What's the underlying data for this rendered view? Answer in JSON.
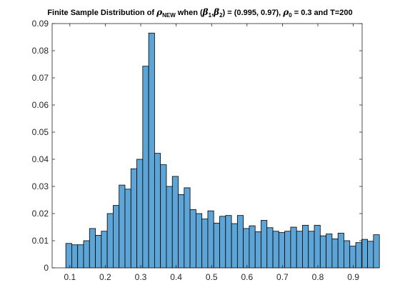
{
  "chart_data": {
    "type": "bar",
    "title_segments": [
      {
        "text": "Finite Sample Distribution of "
      },
      {
        "text": "ρ",
        "italic": true
      },
      {
        "text": "NEW",
        "sub": true
      },
      {
        "text": " when ("
      },
      {
        "text": "β",
        "italic": true
      },
      {
        "text": "1",
        "sub": true
      },
      {
        "text": ","
      },
      {
        "text": "β",
        "italic": true
      },
      {
        "text": "2",
        "sub": true
      },
      {
        "text": ") = (0.995, 0.97), "
      },
      {
        "text": "ρ",
        "italic": true
      },
      {
        "text": "0",
        "sub": true
      },
      {
        "text": " = 0.3 and T=200"
      }
    ],
    "xlabel": "",
    "ylabel": "",
    "xlim": [
      0.05,
      0.925
    ],
    "ylim": [
      0,
      0.09
    ],
    "xticks": [
      "0.1",
      "0.2",
      "0.3",
      "0.4",
      "0.5",
      "0.6",
      "0.7",
      "0.8",
      "0.9"
    ],
    "xtick_values": [
      0.1,
      0.2,
      0.3,
      0.4,
      0.5,
      0.6,
      0.7,
      0.8,
      0.9
    ],
    "yticks": [
      "0",
      "0.01",
      "0.02",
      "0.03",
      "0.04",
      "0.05",
      "0.06",
      "0.07",
      "0.08",
      "0.09"
    ],
    "ytick_values": [
      0,
      0.01,
      0.02,
      0.03,
      0.04,
      0.05,
      0.06,
      0.07,
      0.08,
      0.09
    ],
    "grid": false,
    "bin_edges": [
      0.0886,
      0.1086
    ],
    "bin_width": 0.0167,
    "values": [
      0.009,
      0.0085,
      0.0085,
      0.01,
      0.0145,
      0.012,
      0.0135,
      0.02,
      0.023,
      0.0305,
      0.029,
      0.0365,
      0.04,
      0.0743,
      0.0865,
      0.0422,
      0.038,
      0.03,
      0.0337,
      0.027,
      0.0295,
      0.0215,
      0.02,
      0.018,
      0.021,
      0.0165,
      0.019,
      0.0193,
      0.0163,
      0.0193,
      0.0145,
      0.0155,
      0.0133,
      0.0175,
      0.0148,
      0.0135,
      0.013,
      0.0135,
      0.015,
      0.0135,
      0.0157,
      0.0135,
      0.0157,
      0.0118,
      0.0125,
      0.0107,
      0.0128,
      0.01,
      0.008,
      0.0093,
      0.0105,
      0.0098,
      0.0122
    ],
    "colors": {
      "bar_fill": "#5da5d6",
      "bar_edge": "#000000",
      "axis": "#262626",
      "background": "#ffffff"
    }
  }
}
